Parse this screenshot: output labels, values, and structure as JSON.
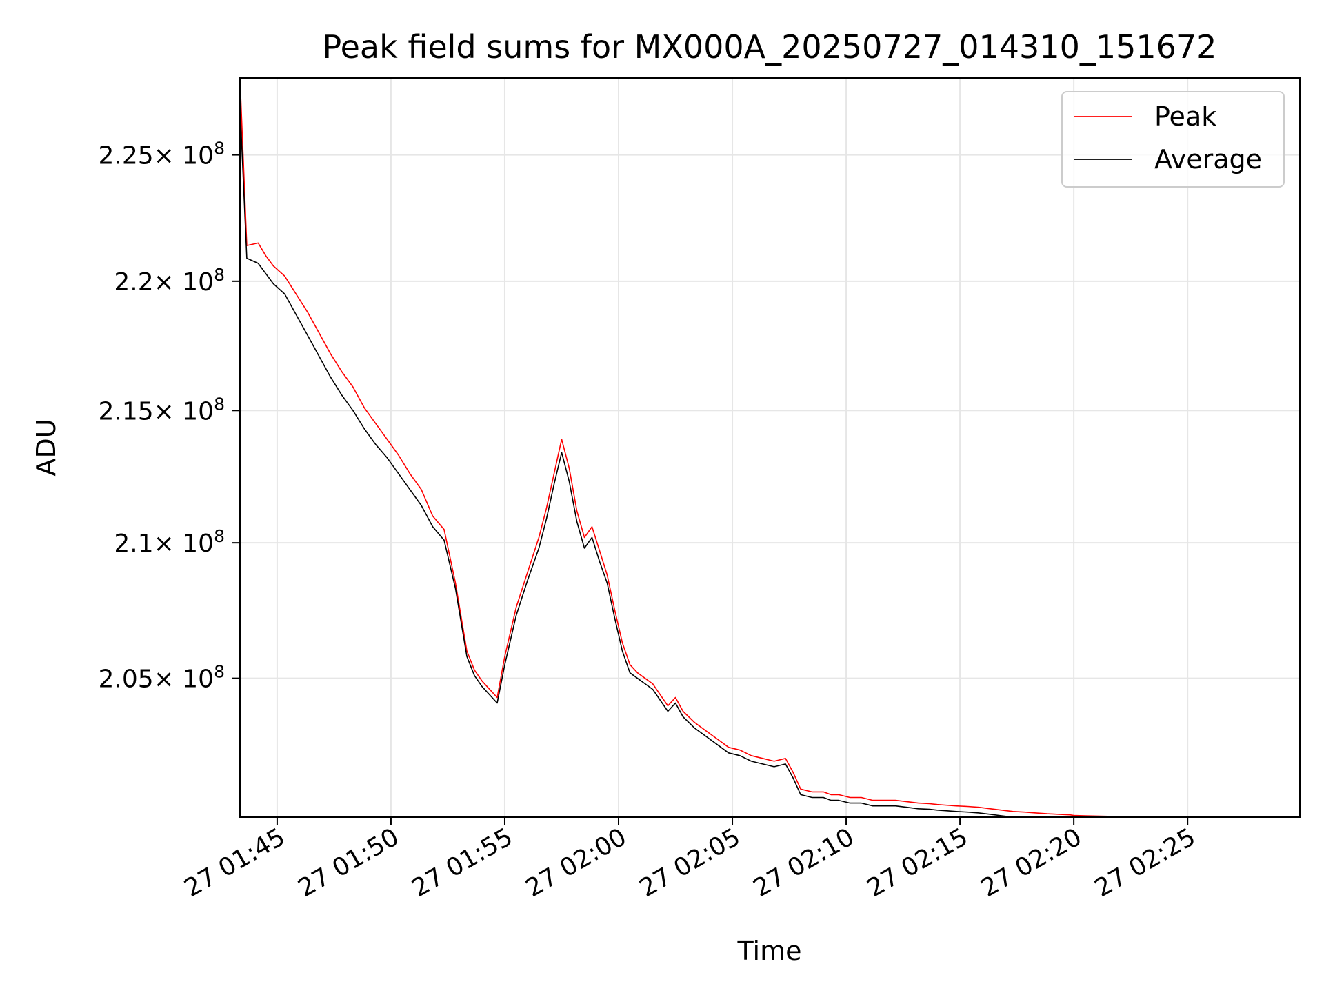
{
  "chart_data": {
    "type": "line",
    "title": "Peak field sums for MX000A_20250727_014310_151672",
    "xlabel": "Time",
    "ylabel": "ADU",
    "xlim": [
      "2025-07-27 01:43:22",
      "2025-07-27 02:29:56"
    ],
    "ylim": [
      200000000,
      228100000
    ],
    "y_scale": "log",
    "grid": true,
    "legend_position": "top-right",
    "x_ticks": [
      "27 01:45",
      "27 01:50",
      "27 01:55",
      "27 02:00",
      "27 02:05",
      "27 02:10",
      "27 02:15",
      "27 02:20",
      "27 02:25"
    ],
    "y_ticks": [
      {
        "value": 205000000,
        "mantissa": "2.05",
        "base": "× 10",
        "exp": "8"
      },
      {
        "value": 210000000,
        "mantissa": "2.1",
        "base": "× 10",
        "exp": "8"
      },
      {
        "value": 215000000,
        "mantissa": "2.15",
        "base": "× 10",
        "exp": "8"
      },
      {
        "value": 220000000,
        "mantissa": "2.2",
        "base": "× 10",
        "exp": "8"
      },
      {
        "value": 225000000,
        "mantissa": "2.25",
        "base": "× 10",
        "exp": "8"
      }
    ],
    "series": [
      {
        "name": "Peak",
        "color": "#ff0000",
        "x": [
          "2025-07-27 01:43:22",
          "2025-07-27 01:43:40",
          "2025-07-27 01:44:10",
          "2025-07-27 01:44:30",
          "2025-07-27 01:44:50",
          "2025-07-27 01:45:20",
          "2025-07-27 01:45:50",
          "2025-07-27 01:46:20",
          "2025-07-27 01:46:50",
          "2025-07-27 01:47:20",
          "2025-07-27 01:47:50",
          "2025-07-27 01:48:20",
          "2025-07-27 01:48:50",
          "2025-07-27 01:49:20",
          "2025-07-27 01:49:50",
          "2025-07-27 01:50:20",
          "2025-07-27 01:50:50",
          "2025-07-27 01:51:20",
          "2025-07-27 01:51:50",
          "2025-07-27 01:52:20",
          "2025-07-27 01:52:50",
          "2025-07-27 01:53:20",
          "2025-07-27 01:53:40",
          "2025-07-27 01:54:00",
          "2025-07-27 01:54:20",
          "2025-07-27 01:54:40",
          "2025-07-27 01:55:00",
          "2025-07-27 01:55:30",
          "2025-07-27 01:56:00",
          "2025-07-27 01:56:30",
          "2025-07-27 01:56:50",
          "2025-07-27 01:57:10",
          "2025-07-27 01:57:30",
          "2025-07-27 01:57:50",
          "2025-07-27 01:58:10",
          "2025-07-27 01:58:30",
          "2025-07-27 01:58:50",
          "2025-07-27 01:59:10",
          "2025-07-27 01:59:30",
          "2025-07-27 01:59:50",
          "2025-07-27 02:00:10",
          "2025-07-27 02:00:30",
          "2025-07-27 02:00:50",
          "2025-07-27 02:01:10",
          "2025-07-27 02:01:30",
          "2025-07-27 02:01:50",
          "2025-07-27 02:02:10",
          "2025-07-27 02:02:30",
          "2025-07-27 02:02:50",
          "2025-07-27 02:03:20",
          "2025-07-27 02:03:50",
          "2025-07-27 02:04:20",
          "2025-07-27 02:04:50",
          "2025-07-27 02:05:20",
          "2025-07-27 02:05:50",
          "2025-07-27 02:06:20",
          "2025-07-27 02:06:50",
          "2025-07-27 02:07:20",
          "2025-07-27 02:07:40",
          "2025-07-27 02:08:00",
          "2025-07-27 02:08:30",
          "2025-07-27 02:09:00",
          "2025-07-27 02:09:20",
          "2025-07-27 02:09:30",
          "2025-07-27 02:09:40",
          "2025-07-27 02:10:10",
          "2025-07-27 02:10:40",
          "2025-07-27 02:11:10",
          "2025-07-27 02:11:40",
          "2025-07-27 02:12:10",
          "2025-07-27 02:12:40",
          "2025-07-27 02:13:10",
          "2025-07-27 02:13:40",
          "2025-07-27 02:14:00",
          "2025-07-27 02:14:20",
          "2025-07-27 02:14:50",
          "2025-07-27 02:15:20",
          "2025-07-27 02:15:50",
          "2025-07-27 02:16:20",
          "2025-07-27 02:16:50",
          "2025-07-27 02:17:20",
          "2025-07-27 02:17:50",
          "2025-07-27 02:18:20",
          "2025-07-27 02:18:50",
          "2025-07-27 02:19:20",
          "2025-07-27 02:19:50",
          "2025-07-27 02:20:00",
          "2025-07-27 02:20:30",
          "2025-07-27 02:21:00",
          "2025-07-27 02:21:30",
          "2025-07-27 02:22:00",
          "2025-07-27 02:22:30",
          "2025-07-27 02:23:00",
          "2025-07-27 02:23:30",
          "2025-07-27 02:24:00",
          "2025-07-27 02:24:30",
          "2025-07-27 02:25:00",
          "2025-07-27 02:25:30",
          "2025-07-27 02:26:00",
          "2025-07-27 02:26:30",
          "2025-07-27 02:27:00",
          "2025-07-27 02:27:30",
          "2025-07-27 02:28:00",
          "2025-07-27 02:28:30",
          "2025-07-27 02:29:00",
          "2025-07-27 02:29:30",
          "2025-07-27 02:29:56"
        ],
        "y": [
          228100000,
          221400000,
          221500000,
          221000000,
          220600000,
          220200000,
          219500000,
          218800000,
          218000000,
          217200000,
          216500000,
          215900000,
          215100000,
          214500000,
          213900000,
          213300000,
          212600000,
          212000000,
          211000000,
          210500000,
          208500000,
          206000000,
          205300000,
          204900000,
          204600000,
          204300000,
          205800000,
          207600000,
          208900000,
          210200000,
          211300000,
          212600000,
          213900000,
          212800000,
          211200000,
          210200000,
          210600000,
          209700000,
          208800000,
          207500000,
          206300000,
          205500000,
          205200000,
          205000000,
          204800000,
          204400000,
          204000000,
          204300000,
          203800000,
          203400000,
          203100000,
          202800000,
          202500000,
          202400000,
          202200000,
          202100000,
          202000000,
          202100000,
          201600000,
          201000000,
          200900000,
          200900000,
          200800000,
          200800000,
          200800000,
          200700000,
          200700000,
          200600000,
          200600000,
          200600000,
          200550000,
          200500000,
          200480000,
          200450000,
          200430000,
          200400000,
          200380000,
          200350000,
          200300000,
          200250000,
          200200000,
          200180000,
          200150000,
          200120000,
          200100000,
          200080000,
          200060000,
          200050000,
          200040000,
          200030000,
          200030000,
          200020000,
          200020000,
          200020000,
          200010000,
          200010000,
          200010000,
          200010000,
          200010000,
          200010000,
          200010000,
          200000000,
          200000000,
          200000000,
          200000000,
          200000000,
          200000000
        ]
      },
      {
        "name": "Average",
        "color": "#000000",
        "x": [
          "2025-07-27 01:43:22",
          "2025-07-27 01:43:40",
          "2025-07-27 01:44:10",
          "2025-07-27 01:44:30",
          "2025-07-27 01:44:50",
          "2025-07-27 01:45:20",
          "2025-07-27 01:45:50",
          "2025-07-27 01:46:20",
          "2025-07-27 01:46:50",
          "2025-07-27 01:47:20",
          "2025-07-27 01:47:50",
          "2025-07-27 01:48:20",
          "2025-07-27 01:48:50",
          "2025-07-27 01:49:20",
          "2025-07-27 01:49:50",
          "2025-07-27 01:50:20",
          "2025-07-27 01:50:50",
          "2025-07-27 01:51:20",
          "2025-07-27 01:51:50",
          "2025-07-27 01:52:20",
          "2025-07-27 01:52:50",
          "2025-07-27 01:53:20",
          "2025-07-27 01:53:40",
          "2025-07-27 01:54:00",
          "2025-07-27 01:54:20",
          "2025-07-27 01:54:40",
          "2025-07-27 01:55:00",
          "2025-07-27 01:55:30",
          "2025-07-27 01:56:00",
          "2025-07-27 01:56:30",
          "2025-07-27 01:56:50",
          "2025-07-27 01:57:10",
          "2025-07-27 01:57:30",
          "2025-07-27 01:57:50",
          "2025-07-27 01:58:10",
          "2025-07-27 01:58:30",
          "2025-07-27 01:58:50",
          "2025-07-27 01:59:10",
          "2025-07-27 01:59:30",
          "2025-07-27 01:59:50",
          "2025-07-27 02:00:10",
          "2025-07-27 02:00:30",
          "2025-07-27 02:00:50",
          "2025-07-27 02:01:10",
          "2025-07-27 02:01:30",
          "2025-07-27 02:01:50",
          "2025-07-27 02:02:10",
          "2025-07-27 02:02:30",
          "2025-07-27 02:02:50",
          "2025-07-27 02:03:20",
          "2025-07-27 02:03:50",
          "2025-07-27 02:04:20",
          "2025-07-27 02:04:50",
          "2025-07-27 02:05:20",
          "2025-07-27 02:05:50",
          "2025-07-27 02:06:20",
          "2025-07-27 02:06:50",
          "2025-07-27 02:07:20",
          "2025-07-27 02:07:40",
          "2025-07-27 02:08:00",
          "2025-07-27 02:08:30",
          "2025-07-27 02:09:00",
          "2025-07-27 02:09:20",
          "2025-07-27 02:09:30",
          "2025-07-27 02:09:40",
          "2025-07-27 02:10:10",
          "2025-07-27 02:10:40",
          "2025-07-27 02:11:10",
          "2025-07-27 02:11:40",
          "2025-07-27 02:12:10",
          "2025-07-27 02:12:40",
          "2025-07-27 02:13:10",
          "2025-07-27 02:13:40",
          "2025-07-27 02:14:00",
          "2025-07-27 02:14:20",
          "2025-07-27 02:14:50",
          "2025-07-27 02:15:20",
          "2025-07-27 02:15:50",
          "2025-07-27 02:16:20",
          "2025-07-27 02:16:50",
          "2025-07-27 02:17:20",
          "2025-07-27 02:17:50",
          "2025-07-27 02:18:20",
          "2025-07-27 02:18:50",
          "2025-07-27 02:19:20",
          "2025-07-27 02:19:50",
          "2025-07-27 02:20:00",
          "2025-07-27 02:20:30",
          "2025-07-27 02:21:00",
          "2025-07-27 02:21:30",
          "2025-07-27 02:22:00",
          "2025-07-27 02:22:30",
          "2025-07-27 02:23:00",
          "2025-07-27 02:23:30",
          "2025-07-27 02:24:00",
          "2025-07-27 02:24:30",
          "2025-07-27 02:25:00",
          "2025-07-27 02:25:30",
          "2025-07-27 02:26:00",
          "2025-07-27 02:26:30",
          "2025-07-27 02:27:00",
          "2025-07-27 02:27:30",
          "2025-07-27 02:28:00",
          "2025-07-27 02:28:30",
          "2025-07-27 02:29:00",
          "2025-07-27 02:29:30",
          "2025-07-27 02:29:56"
        ],
        "y": [
          227000000,
          220900000,
          220700000,
          220300000,
          219900000,
          219500000,
          218700000,
          217900000,
          217100000,
          216300000,
          215600000,
          215000000,
          214300000,
          213700000,
          213200000,
          212600000,
          212000000,
          211400000,
          210600000,
          210100000,
          208300000,
          205800000,
          205100000,
          204700000,
          204400000,
          204100000,
          205500000,
          207300000,
          208600000,
          209800000,
          210900000,
          212200000,
          213400000,
          212300000,
          210800000,
          209800000,
          210200000,
          209300000,
          208500000,
          207200000,
          206000000,
          205200000,
          205000000,
          204800000,
          204600000,
          204200000,
          203800000,
          204100000,
          203600000,
          203200000,
          202900000,
          202600000,
          202300000,
          202200000,
          202000000,
          201900000,
          201800000,
          201900000,
          201400000,
          200800000,
          200700000,
          200700000,
          200600000,
          200600000,
          200600000,
          200500000,
          200500000,
          200400000,
          200400000,
          200400000,
          200350000,
          200300000,
          200280000,
          200250000,
          200230000,
          200200000,
          200180000,
          200150000,
          200100000,
          200050000,
          200000000,
          200000000,
          200000000,
          200000000,
          200000000,
          200000000,
          200000000,
          200000000,
          200000000,
          200000000,
          200000000,
          200000000,
          200000000,
          200000000,
          200000000,
          200000000,
          200000000,
          200000000,
          200000000,
          200000000,
          200000000,
          200000000,
          200000000,
          200000000,
          200000000,
          200000000,
          200000000
        ]
      }
    ]
  }
}
